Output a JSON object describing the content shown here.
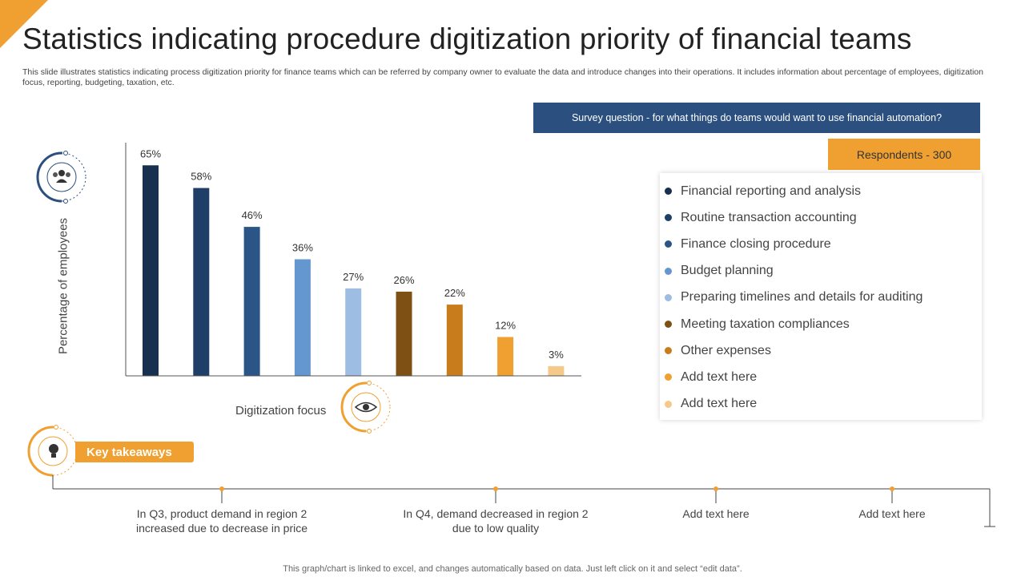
{
  "page": {
    "title": "Statistics indicating procedure digitization priority of financial teams",
    "subtitle": "This slide illustrates statistics indicating process digitization priority for finance teams which can be referred by company owner to evaluate the data and introduce changes into their operations. It includes information about percentage of employees, digitization focus, reporting, budgeting, taxation, etc.",
    "footer": "This graph/chart is linked to excel,  and changes automatically based on data. Just left click on it and select “edit data”."
  },
  "survey": {
    "question": "Survey question - for what things do teams would want to use financial automation?",
    "respondents": "Respondents - 300"
  },
  "chart_data": {
    "type": "bar",
    "title": "",
    "xlabel": "Digitization focus",
    "ylabel": "Percentage of employees",
    "ylim": [
      0,
      72
    ],
    "categories": [
      "Financial reporting and analysis",
      "Routine transaction accounting",
      "Finance closing procedure",
      "Budget planning",
      "Preparing timelines and details for auditing",
      "Meeting taxation compliances",
      "Other expenses",
      "Add text here",
      "Add text here"
    ],
    "values": [
      65,
      58,
      46,
      36,
      27,
      26,
      22,
      12,
      3
    ],
    "value_labels": [
      "65%",
      "58%",
      "46%",
      "36%",
      "27%",
      "26%",
      "22%",
      "12%",
      "3%"
    ],
    "colors": [
      "#17304f",
      "#1f3f68",
      "#2b5487",
      "#6497cf",
      "#9dbde3",
      "#7e5014",
      "#c97c1c",
      "#f0a030",
      "#f5c98a"
    ]
  },
  "takeaways": {
    "label": "Key takeaways",
    "items": [
      "In Q3, product demand in region 2 increased due to decrease in price",
      "In Q4, demand decreased in region 2 due to low quality",
      "Add text here",
      "Add text here"
    ]
  }
}
